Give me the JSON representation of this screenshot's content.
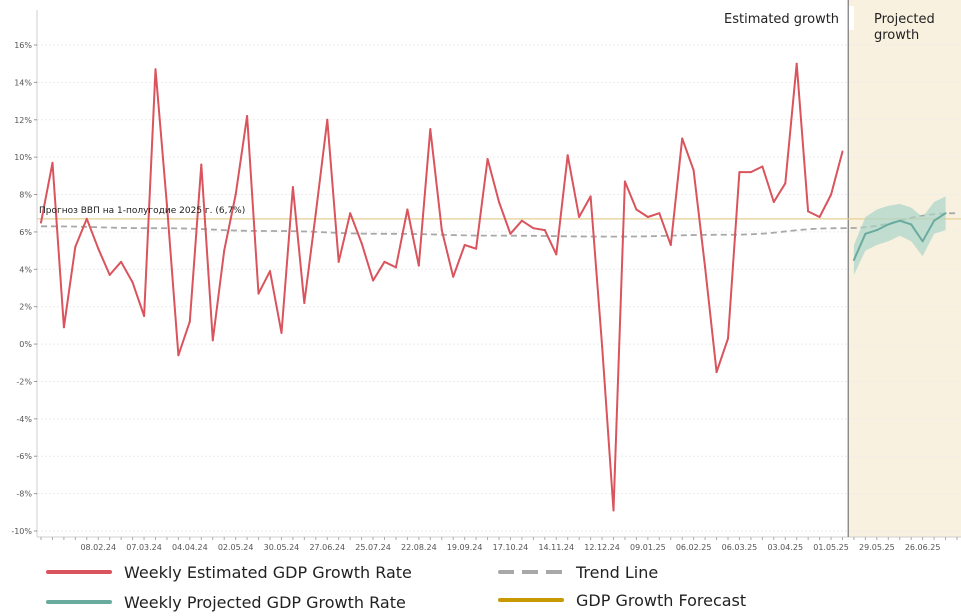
{
  "chart_data": {
    "type": "line",
    "ylim": [
      -10,
      17
    ],
    "yticks": [
      "-10%",
      "-8%",
      "-6%",
      "-4%",
      "-2%",
      "0%",
      "2%",
      "4%",
      "6%",
      "8%",
      "10%",
      "12%",
      "14%",
      "16%"
    ],
    "ytick_values": [
      -10,
      -8,
      -6,
      -4,
      -2,
      0,
      2,
      4,
      6,
      8,
      10,
      12,
      14,
      16
    ],
    "xticks": [
      "08.02.24",
      "07.03.24",
      "04.04.24",
      "02.05.24",
      "30.05.24",
      "27.06.24",
      "25.07.24",
      "22.08.24",
      "19.09.24",
      "17.10.24",
      "14.11.24",
      "12.12.24",
      "09.01.25",
      "06.02.25",
      "06.03.25",
      "03.04.25",
      "01.05.25",
      "29.05.25",
      "26.06.25"
    ],
    "xtick_weeks": [
      5,
      9,
      13,
      17,
      21,
      25,
      29,
      33,
      37,
      41,
      45,
      49,
      53,
      57,
      61,
      65,
      69,
      73,
      77
    ],
    "x_range_weeks": [
      0,
      80
    ],
    "estimated_region_label": "Estimated growth",
    "projected_region_label": "Projected growth",
    "projection_start_week": 70.5,
    "forecast_value": 6.7,
    "forecast_label": "Прогноз ВВП на 1-полугодие 2025 г. (6,7%)",
    "colors": {
      "estimated": "#d9545c",
      "projected": "#6aab9f",
      "band": "#a9d4c8",
      "trend": "#a8a8a8",
      "forecast": "#c89a00",
      "projected_bg": "#f8f1df"
    },
    "series": [
      {
        "name": "Weekly Estimated GDP Growth Rate",
        "start_week": 0,
        "values": [
          6.5,
          9.7,
          0.9,
          5.2,
          6.7,
          5.1,
          3.7,
          4.4,
          3.3,
          1.5,
          14.7,
          7.4,
          -0.6,
          1.2,
          9.6,
          0.2,
          5.0,
          8.0,
          12.2,
          2.7,
          3.9,
          0.6,
          8.4,
          2.2,
          7.0,
          12.0,
          4.4,
          7.0,
          5.4,
          3.4,
          4.4,
          4.1,
          7.2,
          4.2,
          11.5,
          6.1,
          3.6,
          5.3,
          5.1,
          9.9,
          7.6,
          5.9,
          6.6,
          6.2,
          6.1,
          4.8,
          10.1,
          6.8,
          7.9,
          -0.1,
          -8.9,
          8.7,
          7.2,
          6.8,
          7.0,
          5.3,
          11.0,
          9.3,
          4.1,
          -1.5,
          0.3,
          9.2,
          9.2,
          9.5,
          7.6,
          8.6,
          15.0,
          7.1,
          6.8,
          8.0,
          10.3
        ]
      },
      {
        "name": "Weekly Projected GDP Growth Rate",
        "start_week": 71,
        "values": [
          4.5,
          5.9,
          6.1,
          6.4,
          6.6,
          6.4,
          5.5,
          6.6,
          7.0
        ],
        "band_upper": [
          5.3,
          6.8,
          7.2,
          7.4,
          7.5,
          7.3,
          6.8,
          7.6,
          7.9
        ],
        "band_lower": [
          3.7,
          5.0,
          5.3,
          5.5,
          5.8,
          5.5,
          4.7,
          5.9,
          6.1
        ]
      },
      {
        "name": "Trend Line",
        "x_weeks": [
          0,
          10,
          20,
          30,
          40,
          50,
          60,
          70,
          80
        ],
        "values": [
          6.3,
          6.2,
          6.05,
          5.9,
          5.8,
          5.75,
          5.85,
          6.2,
          7.0
        ]
      },
      {
        "name": "GDP Growth Forecast",
        "value": 6.7
      }
    ]
  }
}
